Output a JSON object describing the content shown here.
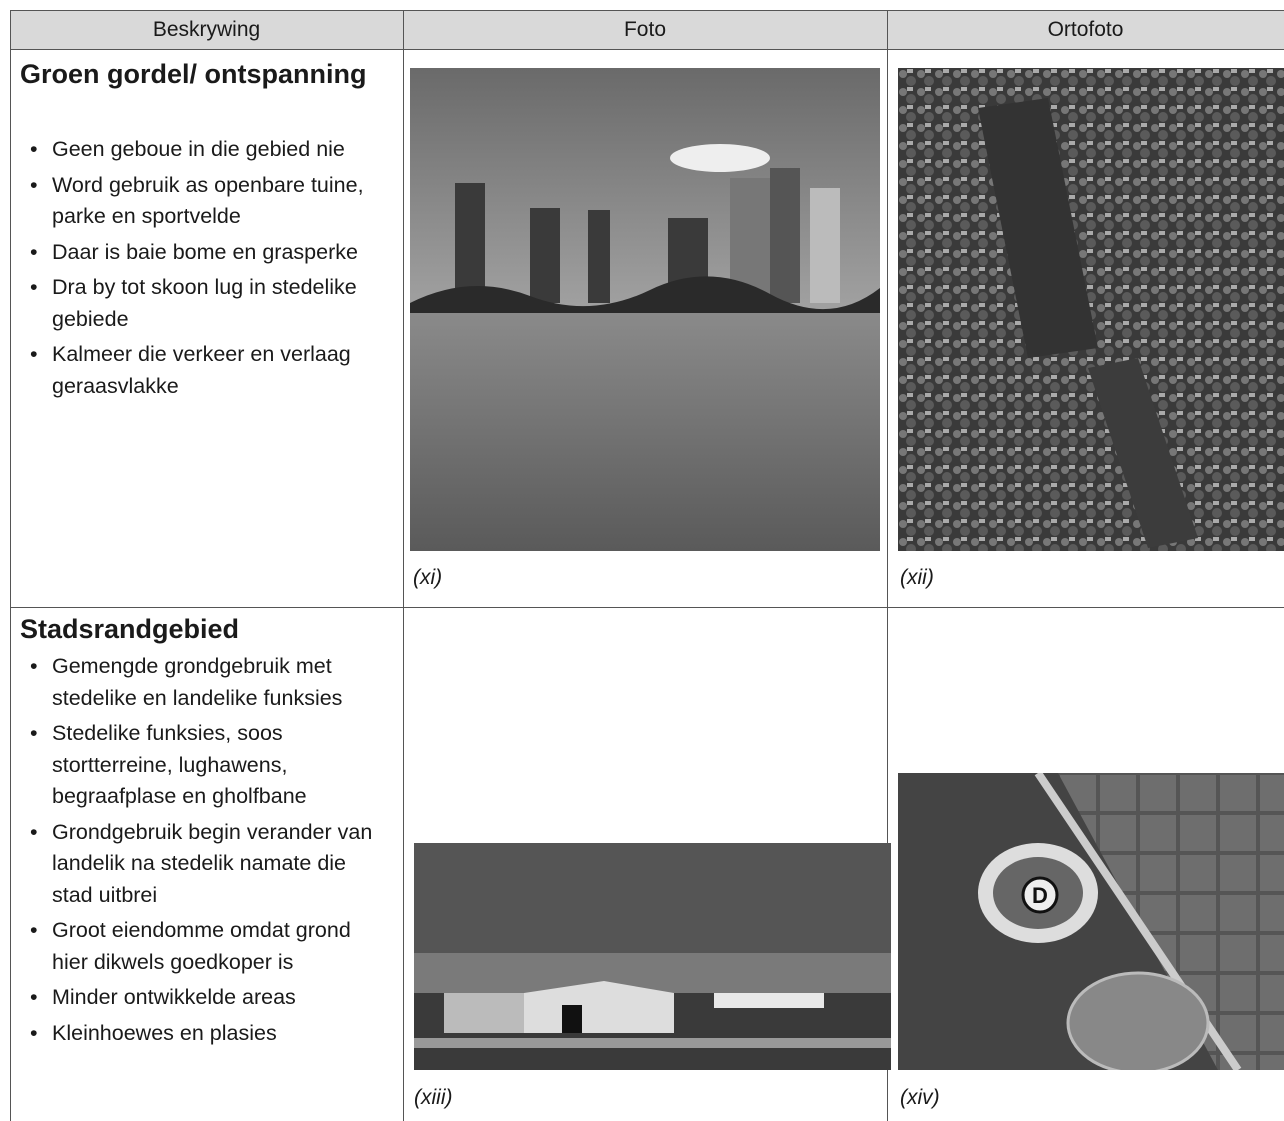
{
  "table": {
    "header": [
      "Beskrywing",
      "Foto",
      "Ortofoto"
    ],
    "rows": [
      {
        "title": "Groen gordel/ ontspanning",
        "bullets": [
          "Geen geboue in die gebied nie",
          "Word gebruik as openbare tuine, parke en sportvelde",
          "Daar is baie bome en grasperke",
          "Dra by tot skoon lug in stedelike gebiede",
          "Kalmeer die verkeer en verlaag geraasvlakke"
        ],
        "photo_caption": "(xi)",
        "ortho_caption": "(xii)"
      },
      {
        "title": "Stadsrandgebied",
        "bullets": [
          "Gemengde grondgebruik met stedelike en landelike funksies",
          "Stedelike funksies, soos stortterreine, lughawens, begraafplase en gholfbane",
          "Grondgebruik begin verander van landelik na stedelik namate die stad uitbrei",
          "Groot eiendomme omdat grond hier dikwels goedkoper is",
          "Minder ontwikkelde areas",
          "Kleinhoewes en plasies"
        ],
        "photo_caption": "(xiii)",
        "ortho_caption": "(xiv)"
      }
    ]
  }
}
